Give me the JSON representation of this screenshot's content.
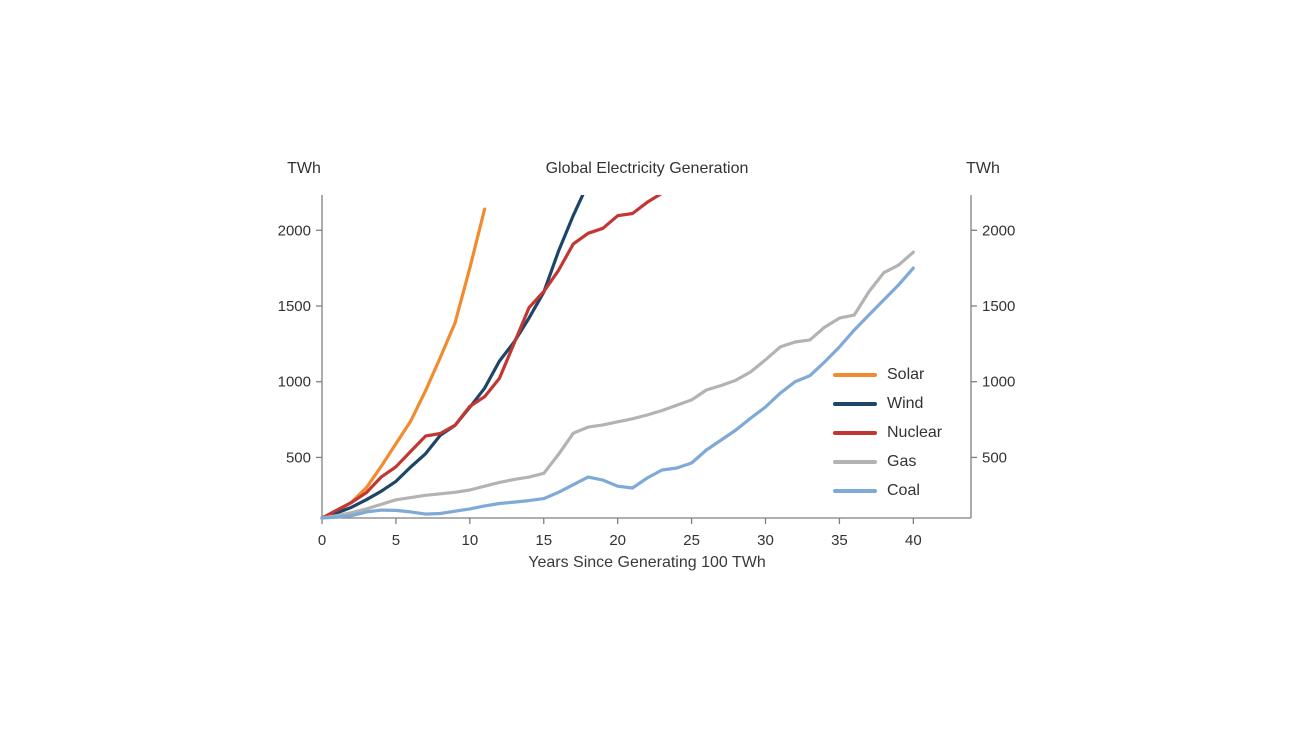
{
  "page": {
    "background": "#ffffff"
  },
  "chart_data": {
    "type": "line",
    "title": "Global Electricity Generation",
    "left_axis_label": "TWh",
    "right_axis_label": "TWh",
    "xlabel": "Years Since Generating 100 TWh",
    "x_ticks": [
      0,
      5,
      10,
      15,
      20,
      25,
      30,
      35,
      40
    ],
    "y_ticks": [
      500,
      1000,
      1500,
      2000
    ],
    "x_range": [
      0,
      43.9
    ],
    "y_range": [
      100,
      2233
    ],
    "grid": false,
    "legend_position": "inside-right",
    "axis_color": "#7f7f7f",
    "text_color": "#333333",
    "series": [
      {
        "name": "Solar",
        "color": "#F28B2D",
        "points": [
          [
            0,
            100
          ],
          [
            1,
            145
          ],
          [
            2,
            205
          ],
          [
            3,
            300
          ],
          [
            4,
            440
          ],
          [
            5,
            590
          ],
          [
            6,
            740
          ],
          [
            7,
            940
          ],
          [
            8,
            1160
          ],
          [
            9,
            1390
          ],
          [
            10,
            1750
          ],
          [
            11,
            2140
          ]
        ]
      },
      {
        "name": "Wind",
        "color": "#1D4568",
        "points": [
          [
            0,
            100
          ],
          [
            1,
            133
          ],
          [
            2,
            171
          ],
          [
            3,
            221
          ],
          [
            4,
            276
          ],
          [
            5,
            342
          ],
          [
            6,
            437
          ],
          [
            7,
            524
          ],
          [
            8,
            646
          ],
          [
            9,
            712
          ],
          [
            10,
            831
          ],
          [
            11,
            957
          ],
          [
            12,
            1136
          ],
          [
            13,
            1263
          ],
          [
            14,
            1420
          ],
          [
            15,
            1592
          ],
          [
            16,
            1862
          ],
          [
            17,
            2098
          ],
          [
            18,
            2310
          ]
        ]
      },
      {
        "name": "Nuclear",
        "color": "#C23732",
        "points": [
          [
            0,
            100
          ],
          [
            1,
            152
          ],
          [
            2,
            203
          ],
          [
            3,
            268
          ],
          [
            4,
            370
          ],
          [
            5,
            438
          ],
          [
            6,
            540
          ],
          [
            7,
            641
          ],
          [
            8,
            658
          ],
          [
            9,
            713
          ],
          [
            10,
            837
          ],
          [
            11,
            901
          ],
          [
            12,
            1022
          ],
          [
            13,
            1255
          ],
          [
            14,
            1489
          ],
          [
            15,
            1596
          ],
          [
            16,
            1735
          ],
          [
            17,
            1910
          ],
          [
            18,
            1980
          ],
          [
            19,
            2013
          ],
          [
            20,
            2096
          ],
          [
            21,
            2111
          ],
          [
            22,
            2185
          ],
          [
            23,
            2245
          ]
        ]
      },
      {
        "name": "Gas",
        "color": "#B3B3B3",
        "points": [
          [
            0,
            100
          ],
          [
            1,
            115
          ],
          [
            2,
            135
          ],
          [
            3,
            160
          ],
          [
            4,
            190
          ],
          [
            5,
            220
          ],
          [
            6,
            235
          ],
          [
            7,
            250
          ],
          [
            8,
            260
          ],
          [
            9,
            270
          ],
          [
            10,
            285
          ],
          [
            11,
            310
          ],
          [
            12,
            335
          ],
          [
            13,
            355
          ],
          [
            14,
            370
          ],
          [
            15,
            395
          ],
          [
            16,
            520
          ],
          [
            17,
            660
          ],
          [
            18,
            700
          ],
          [
            19,
            715
          ],
          [
            20,
            735
          ],
          [
            21,
            755
          ],
          [
            22,
            780
          ],
          [
            23,
            810
          ],
          [
            24,
            845
          ],
          [
            25,
            880
          ],
          [
            26,
            945
          ],
          [
            27,
            975
          ],
          [
            28,
            1010
          ],
          [
            29,
            1065
          ],
          [
            30,
            1145
          ],
          [
            31,
            1230
          ],
          [
            32,
            1262
          ],
          [
            33,
            1276
          ],
          [
            34,
            1360
          ],
          [
            35,
            1420
          ],
          [
            36,
            1440
          ],
          [
            37,
            1595
          ],
          [
            38,
            1720
          ],
          [
            39,
            1770
          ],
          [
            40,
            1855
          ]
        ]
      },
      {
        "name": "Coal",
        "color": "#7FA9D6",
        "points": [
          [
            0,
            100
          ],
          [
            1,
            105
          ],
          [
            2,
            115
          ],
          [
            3,
            140
          ],
          [
            4,
            152
          ],
          [
            5,
            150
          ],
          [
            6,
            140
          ],
          [
            7,
            126
          ],
          [
            8,
            130
          ],
          [
            9,
            145
          ],
          [
            10,
            160
          ],
          [
            11,
            180
          ],
          [
            12,
            196
          ],
          [
            13,
            205
          ],
          [
            14,
            215
          ],
          [
            15,
            228
          ],
          [
            16,
            270
          ],
          [
            17,
            320
          ],
          [
            18,
            370
          ],
          [
            19,
            350
          ],
          [
            20,
            310
          ],
          [
            21,
            298
          ],
          [
            22,
            364
          ],
          [
            23,
            417
          ],
          [
            24,
            430
          ],
          [
            25,
            463
          ],
          [
            26,
            549
          ],
          [
            27,
            615
          ],
          [
            28,
            681
          ],
          [
            29,
            760
          ],
          [
            30,
            833
          ],
          [
            31,
            925
          ],
          [
            32,
            1000
          ],
          [
            33,
            1040
          ],
          [
            34,
            1130
          ],
          [
            35,
            1229
          ],
          [
            36,
            1341
          ],
          [
            37,
            1441
          ],
          [
            38,
            1540
          ],
          [
            39,
            1639
          ],
          [
            40,
            1750
          ]
        ]
      }
    ]
  }
}
